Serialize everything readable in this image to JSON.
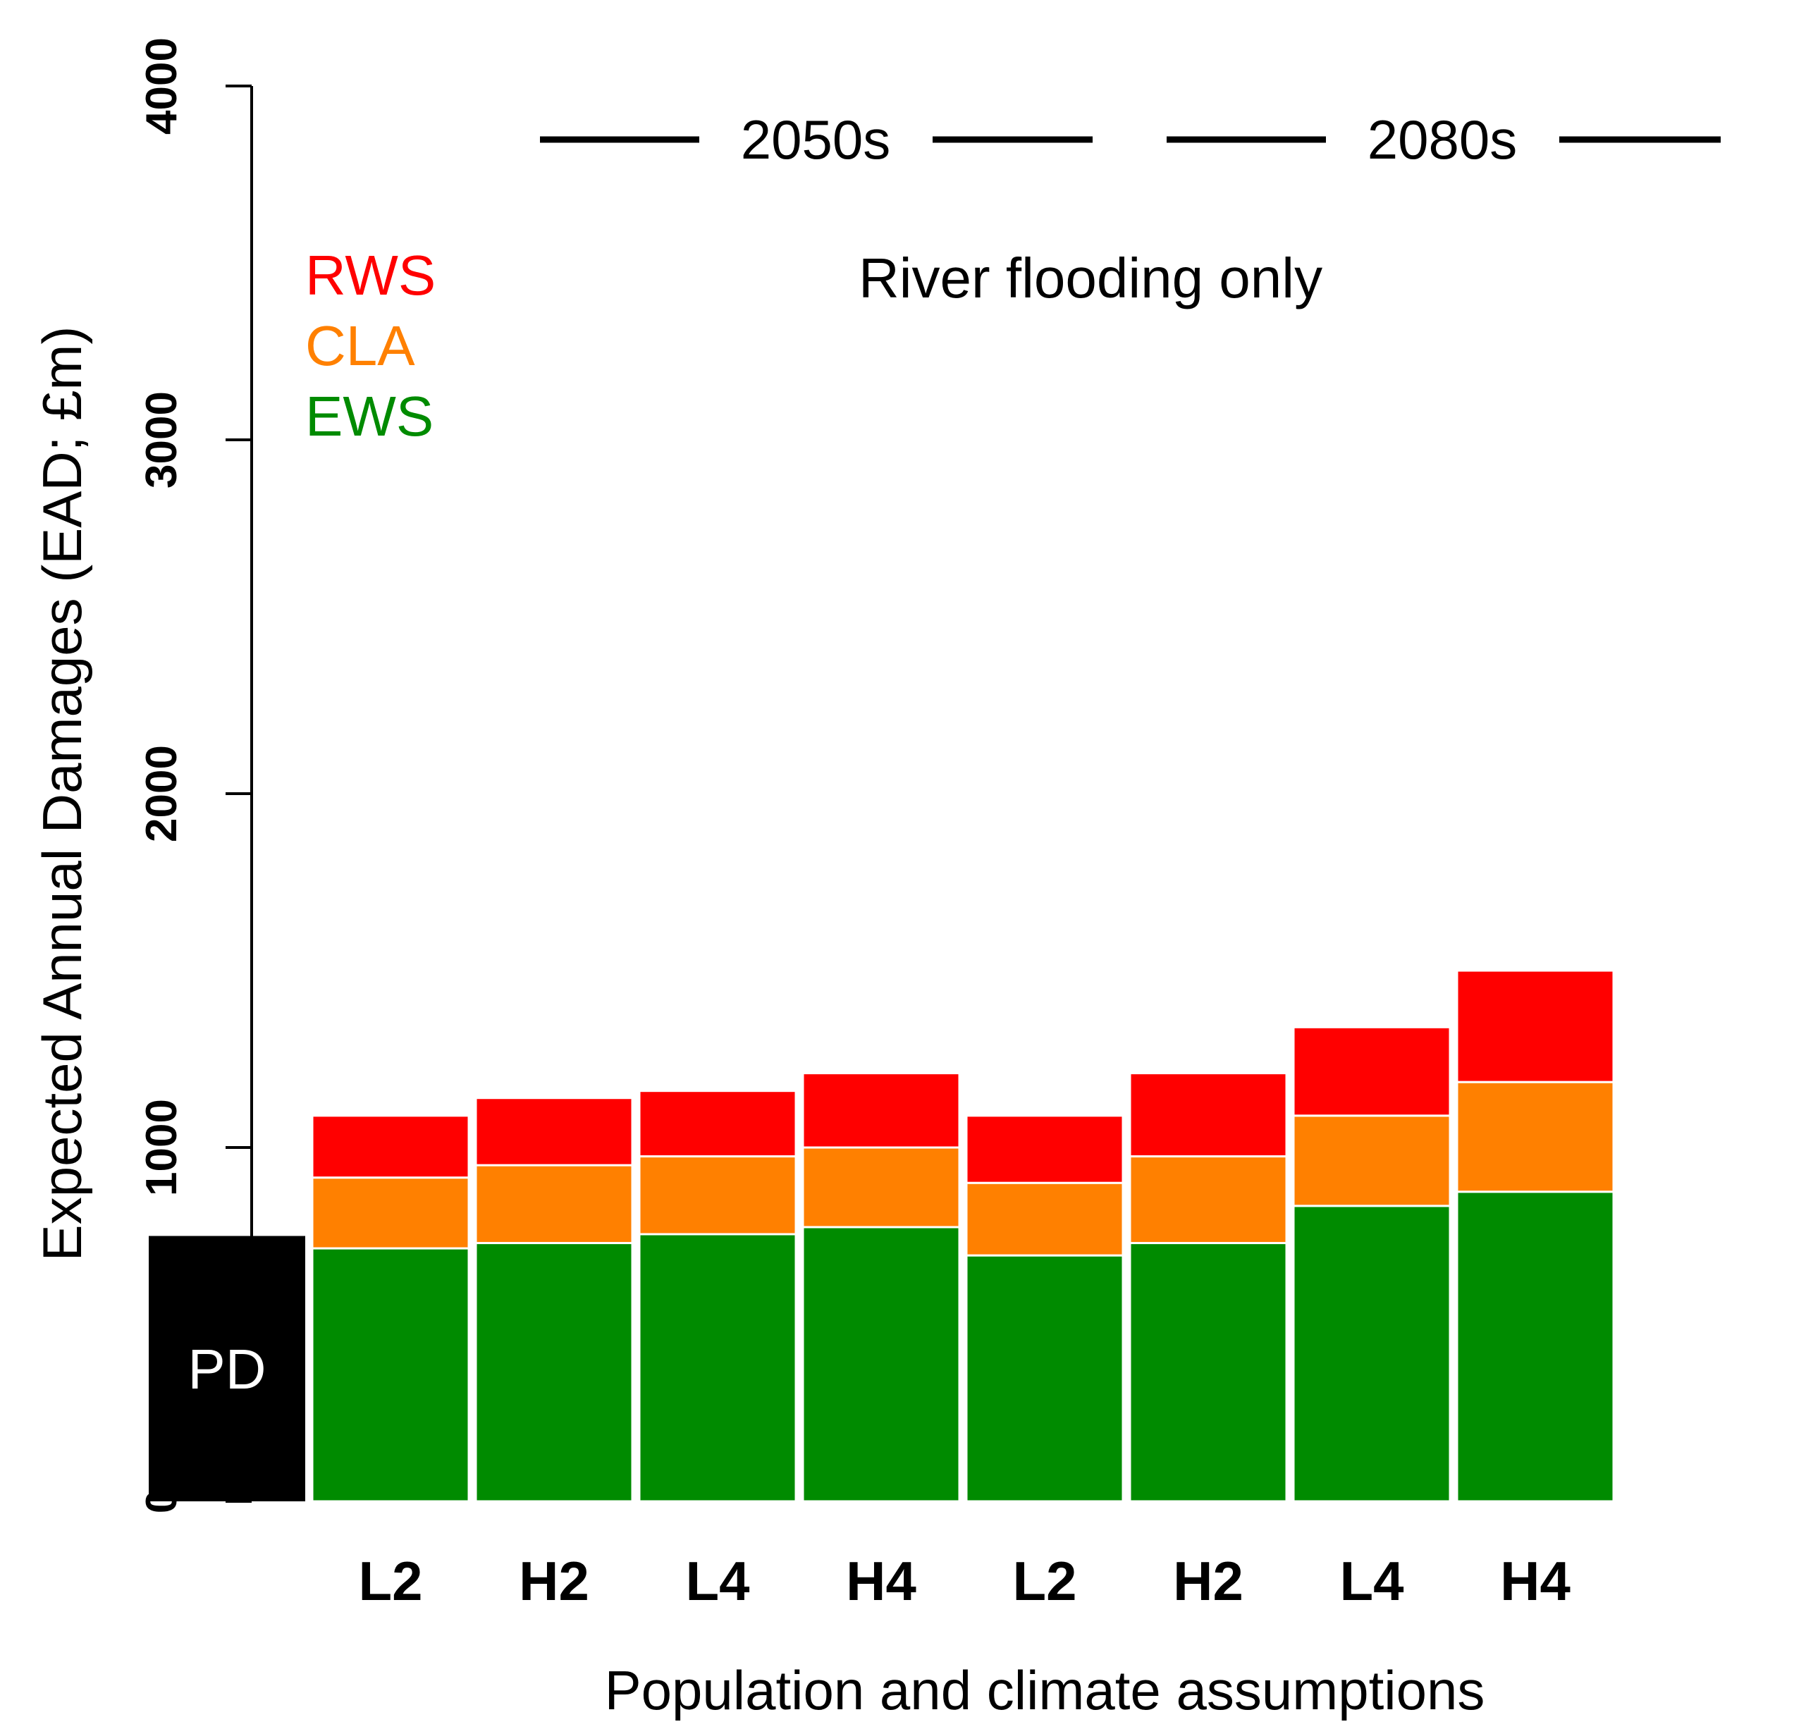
{
  "chart_data": {
    "type": "bar",
    "stacked": true,
    "subtitle": "River flooding only",
    "ylabel": "Expected Annual Damages (EAD; £m)",
    "xlabel": "Population and climate assumptions",
    "ylim": [
      0,
      4000
    ],
    "yticks": [
      "0",
      "1000",
      "2000",
      "3000",
      "4000"
    ],
    "ytick_values": [
      0,
      1000,
      2000,
      3000,
      4000
    ],
    "baseline": {
      "label": "PD",
      "value": 750,
      "color": "#000000"
    },
    "categories": [
      "L2",
      "H2",
      "L4",
      "H4",
      "L2",
      "H2",
      "L4",
      "H4"
    ],
    "periods": [
      {
        "label": "2050s",
        "categories": [
          "L2",
          "H2",
          "L4",
          "H4"
        ]
      },
      {
        "label": "2080s",
        "categories": [
          "L2",
          "H2",
          "L4",
          "H4"
        ]
      }
    ],
    "series": [
      {
        "name": "EWS",
        "color": "#008B00",
        "values": [
          715,
          730,
          755,
          775,
          695,
          730,
          835,
          875
        ]
      },
      {
        "name": "CLA",
        "color": "#FF8000",
        "values": [
          200,
          220,
          220,
          225,
          205,
          245,
          255,
          310
        ]
      },
      {
        "name": "RWS",
        "color": "#FF0000",
        "values": [
          175,
          190,
          185,
          210,
          190,
          235,
          250,
          315
        ]
      }
    ],
    "legend_order": [
      "RWS",
      "CLA",
      "EWS"
    ]
  }
}
